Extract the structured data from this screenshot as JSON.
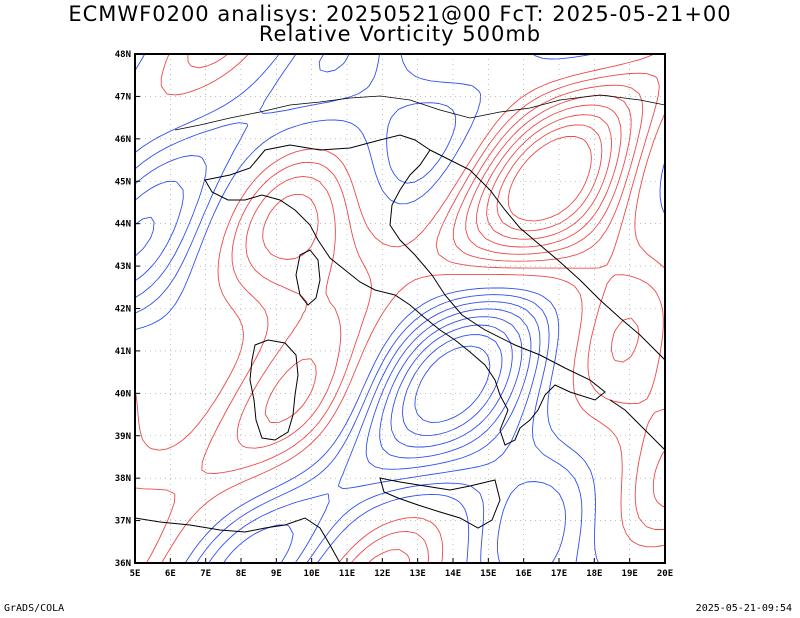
{
  "title_line1": "ECMWF0200 analisys: 20250521@00 FcT: 2025-05-21+00",
  "title_line2": "Relative Vorticity 500mb",
  "footer_left": "GrADS/COLA",
  "footer_right": "2025-05-21-09:54",
  "lat_labels": [
    "48N",
    "47N",
    "46N",
    "45N",
    "44N",
    "43N",
    "42N",
    "41N",
    "40N",
    "39N",
    "38N",
    "37N",
    "36N"
  ],
  "lon_labels": [
    "5E",
    "6E",
    "7E",
    "8E",
    "9E",
    "10E",
    "11E",
    "12E",
    "13E",
    "14E",
    "15E",
    "16E",
    "17E",
    "18E",
    "19E",
    "20E"
  ],
  "colors": {
    "positive": "#f04848",
    "negative": "#3050f0",
    "coast": "#000000"
  }
}
